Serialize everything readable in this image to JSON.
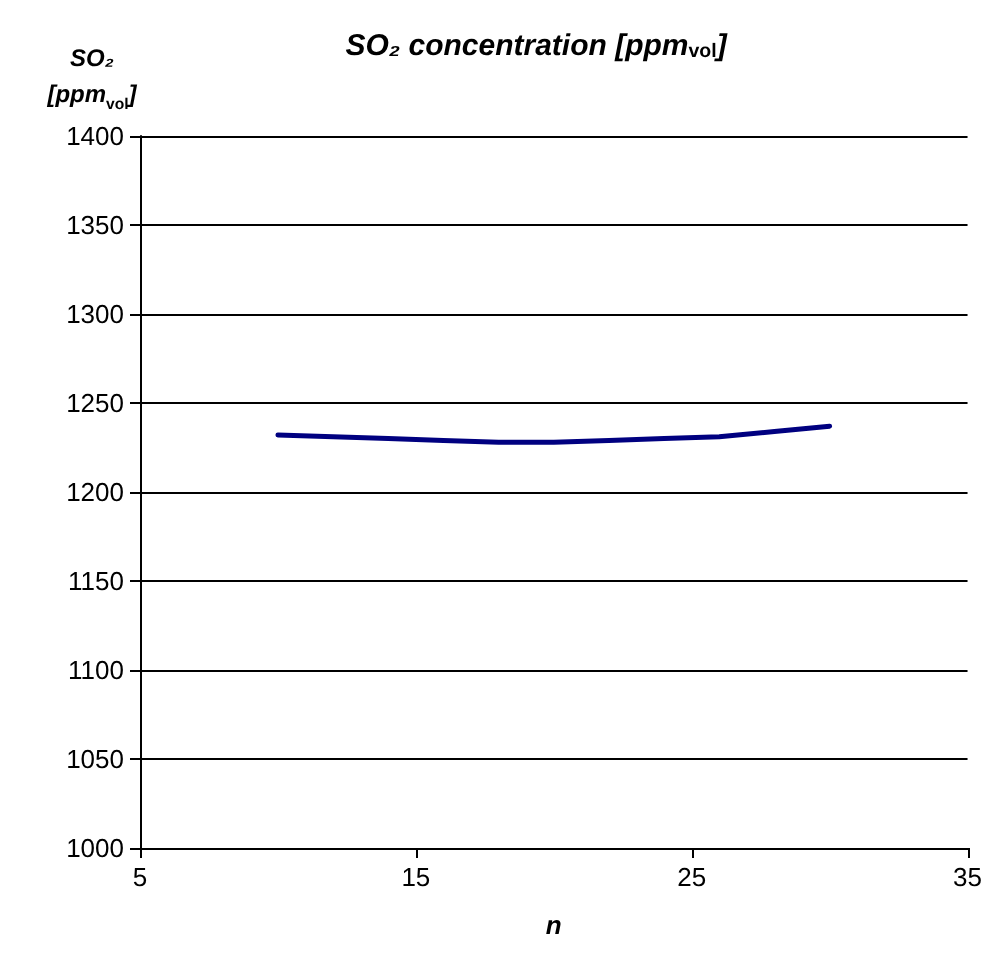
{
  "chart_data": {
    "type": "line",
    "title": "SO₂ concentration [ppm$_{vol}$]",
    "xlabel": "n",
    "ylabel": "SO₂\n[ppm$_{vol}$]",
    "x": [
      10,
      12,
      14,
      16,
      18,
      20,
      22,
      24,
      26,
      28,
      30
    ],
    "series": [
      {
        "color": "#000080",
        "values": [
          1232,
          1231,
          1230,
          1229,
          1228,
          1228,
          1229,
          1230,
          1231,
          1234,
          1237
        ]
      }
    ],
    "xlim": [
      5,
      35
    ],
    "xticks": [
      5,
      15,
      25,
      35
    ],
    "ylim": [
      1000,
      1400
    ],
    "yticks": [
      1000,
      1050,
      1100,
      1150,
      1200,
      1250,
      1300,
      1350,
      1400
    ],
    "grid": "y",
    "marker": "none",
    "line_style": "solid"
  }
}
